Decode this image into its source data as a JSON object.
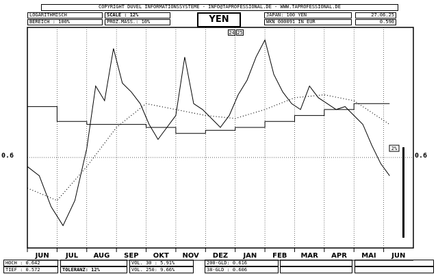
{
  "header": {
    "copyright": "COPYRIGHT  DUVEL INFORMATIONSSYSTEME - INFO@TAPROFESSIONAL.DE - WWW.TAPROFESSIONAL.DE",
    "log_label": "LOGARITHMISCH",
    "range_label": "BEREICH  :   100%",
    "scale_label": "SCALE : 12%",
    "proz_label": "PROZ.MASS.: 10%",
    "title": "YEN",
    "japan_label": "JAPAN: 100 YEN",
    "wkn_label": "WKN 000091   IN EUR",
    "date": "27.06.25",
    "price": "0.590",
    "badge_a": "24",
    "badge_b": "25",
    "marker": "2%"
  },
  "footer": {
    "hoch": "HOCH : 0.642",
    "tief": "TIEF : 0.572",
    "toleranz": "TOLERANZ: 12%",
    "vol30": "VOL. 30 : 5.91%",
    "vol250": "VOL. 250: 9.66%",
    "gld200": "200-GLD: 0.616",
    "gld38": "38-GLD : 0.606"
  },
  "chart_data": {
    "type": "line",
    "title": "YEN",
    "scale": "log",
    "x_labels": [
      "JUN",
      "JUL",
      "AUG",
      "SEP",
      "OKT",
      "NOV",
      "DEZ",
      "JAN",
      "FEB",
      "MAR",
      "APR",
      "MAI",
      "JUN"
    ],
    "y_ticks": [
      0.6
    ],
    "y_tick_labels": [
      "0.6"
    ],
    "ylim": [
      0.572,
      0.642
    ],
    "series": [
      {
        "style": "solid",
        "x": [
          0,
          0.4,
          0.8,
          1.2,
          1.6,
          2.0,
          2.3,
          2.6,
          2.9,
          3.2,
          3.5,
          3.8,
          4.1,
          4.4,
          4.7,
          5.0,
          5.3,
          5.6,
          5.9,
          6.2,
          6.5,
          6.8,
          7.1,
          7.4,
          7.7,
          8.0,
          8.3,
          8.6,
          8.9,
          9.2,
          9.5,
          9.8,
          10.1,
          10.4,
          10.7,
          11.0,
          11.3,
          11.6,
          11.9,
          12.2
        ],
        "values": [
          0.597,
          0.594,
          0.584,
          0.578,
          0.586,
          0.603,
          0.624,
          0.619,
          0.637,
          0.625,
          0.622,
          0.618,
          0.611,
          0.606,
          0.61,
          0.614,
          0.634,
          0.618,
          0.616,
          0.613,
          0.61,
          0.614,
          0.621,
          0.626,
          0.634,
          0.64,
          0.628,
          0.622,
          0.618,
          0.616,
          0.624,
          0.62,
          0.618,
          0.616,
          0.617,
          0.614,
          0.611,
          0.604,
          0.598,
          0.594
        ]
      },
      {
        "style": "dotted",
        "x": [
          0,
          1,
          2,
          3,
          4,
          5,
          6,
          7,
          8,
          9,
          10,
          11,
          12.2
        ],
        "values": [
          0.59,
          0.586,
          0.597,
          0.61,
          0.618,
          0.616,
          0.614,
          0.613,
          0.616,
          0.62,
          0.621,
          0.619,
          0.611
        ]
      },
      {
        "style": "solid-step",
        "x": [
          0,
          1,
          2,
          3,
          4,
          5,
          6,
          7,
          8,
          9,
          10,
          11,
          12.2
        ],
        "values": [
          0.617,
          0.612,
          0.611,
          0.611,
          0.61,
          0.608,
          0.609,
          0.61,
          0.612,
          0.614,
          0.616,
          0.618,
          0.618
        ]
      }
    ],
    "grid": true
  }
}
